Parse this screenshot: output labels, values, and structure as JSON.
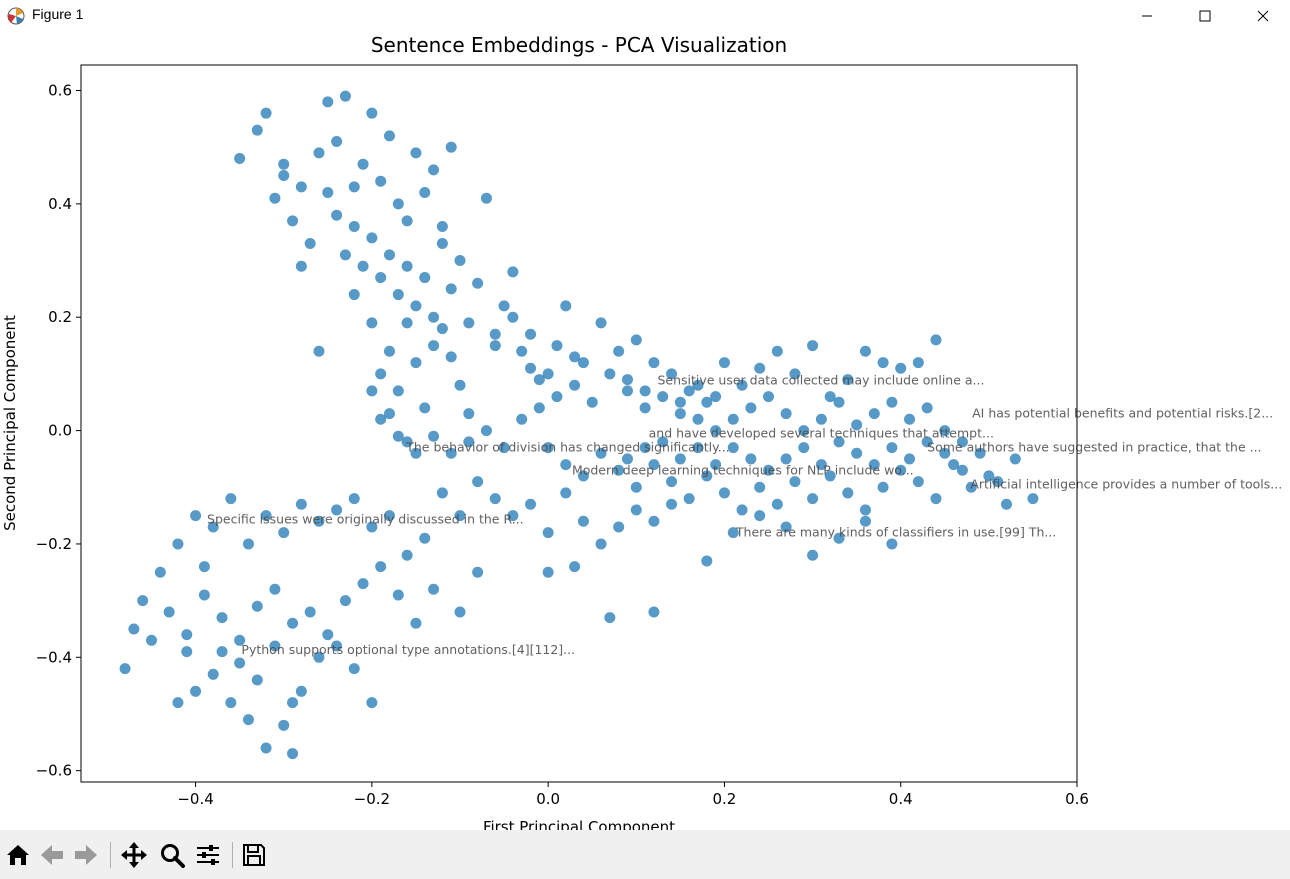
{
  "window": {
    "title": "Figure 1"
  },
  "toolbar": {
    "buttons": [
      "home-icon",
      "back-arrow-icon",
      "forward-arrow-icon",
      "pan-icon",
      "zoom-icon",
      "configure-subplots-icon",
      "save-icon"
    ]
  },
  "chart_data": {
    "type": "scatter",
    "title": "Sentence Embeddings - PCA Visualization",
    "xlabel": "First Principal Component",
    "ylabel": "Second Principal Component",
    "xlim": [
      -0.53,
      0.6
    ],
    "ylim": [
      -0.62,
      0.645
    ],
    "xticks": [
      "−0.4",
      "−0.2",
      "0.0",
      "0.2",
      "0.4",
      "0.6"
    ],
    "yticks": [
      "−0.6",
      "−0.4",
      "−0.2",
      "0.0",
      "0.2",
      "0.4",
      "0.6"
    ],
    "grid": false,
    "point_color": "#1f77b4",
    "point_alpha": 0.75,
    "points": [
      [
        -0.35,
        0.48
      ],
      [
        -0.32,
        0.56
      ],
      [
        -0.3,
        0.45
      ],
      [
        -0.28,
        0.43
      ],
      [
        -0.26,
        0.49
      ],
      [
        -0.25,
        0.58
      ],
      [
        -0.24,
        0.51
      ],
      [
        -0.23,
        0.59
      ],
      [
        -0.22,
        0.43
      ],
      [
        -0.21,
        0.47
      ],
      [
        -0.2,
        0.56
      ],
      [
        -0.19,
        0.44
      ],
      [
        -0.18,
        0.52
      ],
      [
        -0.17,
        0.4
      ],
      [
        -0.16,
        0.37
      ],
      [
        -0.15,
        0.49
      ],
      [
        -0.14,
        0.42
      ],
      [
        -0.13,
        0.46
      ],
      [
        -0.12,
        0.36
      ],
      [
        -0.11,
        0.5
      ],
      [
        -0.33,
        0.53
      ],
      [
        -0.31,
        0.41
      ],
      [
        -0.29,
        0.37
      ],
      [
        -0.27,
        0.33
      ],
      [
        -0.25,
        0.42
      ],
      [
        -0.24,
        0.38
      ],
      [
        -0.23,
        0.31
      ],
      [
        -0.22,
        0.36
      ],
      [
        -0.21,
        0.29
      ],
      [
        -0.2,
        0.34
      ],
      [
        -0.19,
        0.27
      ],
      [
        -0.18,
        0.31
      ],
      [
        -0.17,
        0.24
      ],
      [
        -0.16,
        0.29
      ],
      [
        -0.15,
        0.22
      ],
      [
        -0.14,
        0.27
      ],
      [
        -0.13,
        0.2
      ],
      [
        -0.12,
        0.33
      ],
      [
        -0.11,
        0.25
      ],
      [
        -0.1,
        0.3
      ],
      [
        -0.09,
        0.19
      ],
      [
        -0.08,
        0.26
      ],
      [
        -0.07,
        0.41
      ],
      [
        -0.06,
        0.17
      ],
      [
        -0.05,
        0.22
      ],
      [
        -0.04,
        0.28
      ],
      [
        -0.03,
        0.14
      ],
      [
        -0.02,
        0.11
      ],
      [
        -0.01,
        0.09
      ],
      [
        0.0,
        0.1
      ],
      [
        -0.26,
        0.14
      ],
      [
        -0.28,
        0.29
      ],
      [
        -0.3,
        0.47
      ],
      [
        -0.22,
        0.24
      ],
      [
        -0.2,
        0.19
      ],
      [
        -0.18,
        0.14
      ],
      [
        -0.16,
        0.19
      ],
      [
        -0.15,
        0.12
      ],
      [
        -0.13,
        0.15
      ],
      [
        -0.12,
        0.18
      ],
      [
        -0.11,
        0.13
      ],
      [
        -0.1,
        0.08
      ],
      [
        -0.09,
        0.03
      ],
      [
        -0.2,
        0.07
      ],
      [
        -0.19,
        0.1
      ],
      [
        -0.18,
        0.03
      ],
      [
        -0.17,
        0.07
      ],
      [
        -0.16,
        -0.02
      ],
      [
        -0.14,
        0.04
      ],
      [
        -0.13,
        -0.01
      ],
      [
        0.02,
        0.22
      ],
      [
        0.04,
        0.12
      ],
      [
        0.06,
        0.19
      ],
      [
        0.08,
        0.14
      ],
      [
        0.1,
        0.16
      ],
      [
        0.12,
        0.12
      ],
      [
        0.14,
        0.1
      ],
      [
        0.16,
        0.07
      ],
      [
        0.18,
        0.05
      ],
      [
        0.2,
        0.12
      ],
      [
        0.22,
        0.08
      ],
      [
        0.24,
        0.11
      ],
      [
        0.26,
        0.14
      ],
      [
        0.28,
        0.1
      ],
      [
        0.3,
        0.15
      ],
      [
        0.32,
        0.06
      ],
      [
        0.34,
        0.09
      ],
      [
        0.36,
        0.14
      ],
      [
        0.38,
        0.12
      ],
      [
        0.4,
        0.11
      ],
      [
        0.42,
        0.12
      ],
      [
        0.44,
        0.16
      ],
      [
        0.03,
        0.08
      ],
      [
        0.05,
        0.05
      ],
      [
        0.07,
        0.1
      ],
      [
        0.09,
        0.07
      ],
      [
        0.11,
        0.04
      ],
      [
        0.13,
        0.06
      ],
      [
        0.15,
        0.03
      ],
      [
        0.17,
        0.02
      ],
      [
        0.19,
        0.0
      ],
      [
        0.21,
        0.02
      ],
      [
        0.23,
        0.04
      ],
      [
        0.25,
        0.06
      ],
      [
        0.27,
        0.03
      ],
      [
        0.29,
        0.0
      ],
      [
        0.31,
        0.02
      ],
      [
        0.33,
        0.05
      ],
      [
        0.35,
        0.01
      ],
      [
        0.37,
        0.03
      ],
      [
        0.39,
        0.05
      ],
      [
        0.41,
        0.02
      ],
      [
        0.43,
        0.04
      ],
      [
        0.45,
        0.0
      ],
      [
        0.47,
        -0.02
      ],
      [
        0.49,
        -0.04
      ],
      [
        0.0,
        -0.03
      ],
      [
        0.02,
        -0.06
      ],
      [
        0.04,
        -0.08
      ],
      [
        0.06,
        -0.04
      ],
      [
        0.08,
        -0.07
      ],
      [
        0.1,
        -0.1
      ],
      [
        0.12,
        -0.06
      ],
      [
        0.14,
        -0.09
      ],
      [
        0.16,
        -0.12
      ],
      [
        0.18,
        -0.08
      ],
      [
        0.2,
        -0.11
      ],
      [
        0.22,
        -0.14
      ],
      [
        0.24,
        -0.1
      ],
      [
        0.26,
        -0.13
      ],
      [
        0.28,
        -0.09
      ],
      [
        0.3,
        -0.12
      ],
      [
        0.32,
        -0.08
      ],
      [
        0.34,
        -0.11
      ],
      [
        0.36,
        -0.14
      ],
      [
        0.38,
        -0.1
      ],
      [
        0.4,
        -0.07
      ],
      [
        0.42,
        -0.09
      ],
      [
        0.44,
        -0.12
      ],
      [
        0.46,
        -0.06
      ],
      [
        0.48,
        -0.1
      ],
      [
        0.5,
        -0.08
      ],
      [
        0.52,
        -0.13
      ],
      [
        0.55,
        -0.12
      ],
      [
        0.53,
        -0.05
      ],
      [
        0.51,
        -0.09
      ],
      [
        -0.08,
        -0.09
      ],
      [
        -0.06,
        -0.12
      ],
      [
        -0.04,
        -0.15
      ],
      [
        -0.02,
        -0.13
      ],
      [
        0.0,
        -0.18
      ],
      [
        0.02,
        -0.11
      ],
      [
        0.04,
        -0.16
      ],
      [
        0.06,
        -0.2
      ],
      [
        0.08,
        -0.17
      ],
      [
        0.1,
        -0.14
      ],
      [
        0.12,
        -0.16
      ],
      [
        0.14,
        -0.13
      ],
      [
        0.18,
        -0.23
      ],
      [
        0.21,
        -0.18
      ],
      [
        0.24,
        -0.15
      ],
      [
        0.27,
        -0.17
      ],
      [
        0.3,
        -0.22
      ],
      [
        0.33,
        -0.19
      ],
      [
        0.36,
        -0.16
      ],
      [
        0.39,
        -0.2
      ],
      [
        0.0,
        -0.25
      ],
      [
        0.03,
        -0.24
      ],
      [
        0.07,
        -0.33
      ],
      [
        0.12,
        -0.32
      ],
      [
        -0.1,
        -0.15
      ],
      [
        -0.12,
        -0.11
      ],
      [
        -0.14,
        -0.19
      ],
      [
        -0.16,
        -0.22
      ],
      [
        -0.18,
        -0.15
      ],
      [
        -0.2,
        -0.17
      ],
      [
        -0.22,
        -0.12
      ],
      [
        -0.24,
        -0.14
      ],
      [
        -0.26,
        -0.16
      ],
      [
        -0.28,
        -0.13
      ],
      [
        -0.3,
        -0.18
      ],
      [
        -0.32,
        -0.15
      ],
      [
        -0.34,
        -0.2
      ],
      [
        -0.36,
        -0.12
      ],
      [
        -0.38,
        -0.17
      ],
      [
        -0.4,
        -0.15
      ],
      [
        -0.42,
        -0.2
      ],
      [
        -0.1,
        -0.32
      ],
      [
        -0.08,
        -0.25
      ],
      [
        -0.13,
        -0.28
      ],
      [
        -0.15,
        -0.34
      ],
      [
        -0.17,
        -0.29
      ],
      [
        -0.19,
        -0.24
      ],
      [
        -0.21,
        -0.27
      ],
      [
        -0.23,
        -0.3
      ],
      [
        -0.25,
        -0.36
      ],
      [
        -0.27,
        -0.32
      ],
      [
        -0.29,
        -0.34
      ],
      [
        -0.31,
        -0.28
      ],
      [
        -0.33,
        -0.31
      ],
      [
        -0.35,
        -0.37
      ],
      [
        -0.37,
        -0.33
      ],
      [
        -0.39,
        -0.29
      ],
      [
        -0.41,
        -0.36
      ],
      [
        -0.43,
        -0.32
      ],
      [
        -0.45,
        -0.37
      ],
      [
        -0.47,
        -0.35
      ],
      [
        -0.48,
        -0.42
      ],
      [
        -0.46,
        -0.3
      ],
      [
        -0.44,
        -0.25
      ],
      [
        -0.42,
        -0.48
      ],
      [
        -0.4,
        -0.46
      ],
      [
        -0.38,
        -0.43
      ],
      [
        -0.36,
        -0.48
      ],
      [
        -0.34,
        -0.51
      ],
      [
        -0.32,
        -0.56
      ],
      [
        -0.3,
        -0.52
      ],
      [
        -0.29,
        -0.48
      ],
      [
        -0.28,
        -0.46
      ],
      [
        -0.26,
        -0.4
      ],
      [
        -0.24,
        -0.38
      ],
      [
        -0.22,
        -0.42
      ],
      [
        -0.2,
        -0.48
      ],
      [
        -0.33,
        -0.44
      ],
      [
        -0.35,
        -0.41
      ],
      [
        -0.37,
        -0.39
      ],
      [
        -0.31,
        -0.38
      ],
      [
        -0.29,
        -0.57
      ],
      [
        -0.39,
        -0.24
      ],
      [
        -0.41,
        -0.39
      ],
      [
        -0.11,
        -0.04
      ],
      [
        -0.09,
        -0.02
      ],
      [
        -0.07,
        0.0
      ],
      [
        -0.05,
        -0.03
      ],
      [
        -0.03,
        0.02
      ],
      [
        -0.01,
        0.04
      ],
      [
        0.01,
        0.06
      ],
      [
        -0.15,
        -0.04
      ],
      [
        -0.17,
        -0.01
      ],
      [
        -0.19,
        0.02
      ],
      [
        -0.06,
        0.15
      ],
      [
        -0.04,
        0.2
      ],
      [
        -0.02,
        0.17
      ],
      [
        0.01,
        0.15
      ],
      [
        0.03,
        0.13
      ],
      [
        0.09,
        0.09
      ],
      [
        0.11,
        0.07
      ],
      [
        0.15,
        0.05
      ],
      [
        0.17,
        0.08
      ],
      [
        0.19,
        0.06
      ],
      [
        0.21,
        -0.03
      ],
      [
        0.23,
        -0.05
      ],
      [
        0.25,
        -0.07
      ],
      [
        0.27,
        -0.05
      ],
      [
        0.29,
        -0.03
      ],
      [
        0.31,
        -0.06
      ],
      [
        0.33,
        -0.02
      ],
      [
        0.35,
        -0.04
      ],
      [
        0.37,
        -0.06
      ],
      [
        0.39,
        -0.03
      ],
      [
        0.41,
        -0.05
      ],
      [
        0.43,
        -0.02
      ],
      [
        0.45,
        -0.04
      ],
      [
        0.47,
        -0.07
      ],
      [
        0.13,
        -0.02
      ],
      [
        0.15,
        -0.05
      ],
      [
        0.17,
        -0.03
      ],
      [
        0.19,
        -0.06
      ],
      [
        0.11,
        -0.03
      ],
      [
        0.09,
        -0.05
      ]
    ],
    "annotations": [
      {
        "x": 0.124,
        "y": 0.088,
        "text": "Sensitive user data collected may include online a..."
      },
      {
        "x": 0.481,
        "y": 0.03,
        "text": "AI has potential benefits and potential risks.[2..."
      },
      {
        "x": 0.114,
        "y": -0.005,
        "text": "and have developed several techniques that attempt..."
      },
      {
        "x": -0.161,
        "y": -0.03,
        "text": "The behavior of division has changed significantly..."
      },
      {
        "x": 0.43,
        "y": -0.03,
        "text": "Some authors have suggested in practice, that the ..."
      },
      {
        "x": 0.027,
        "y": -0.07,
        "text": "Modern deep learning techniques for NLP include wo..."
      },
      {
        "x": 0.479,
        "y": -0.095,
        "text": "Artificial intelligence provides a number of tools..."
      },
      {
        "x": -0.387,
        "y": -0.157,
        "text": "Specific issues were originally discussed in the R..."
      },
      {
        "x": 0.213,
        "y": -0.18,
        "text": "There are many kinds of classifiers in use.[99] Th..."
      },
      {
        "x": -0.348,
        "y": -0.387,
        "text": "Python supports optional type annotations.[4][112]..."
      }
    ]
  }
}
